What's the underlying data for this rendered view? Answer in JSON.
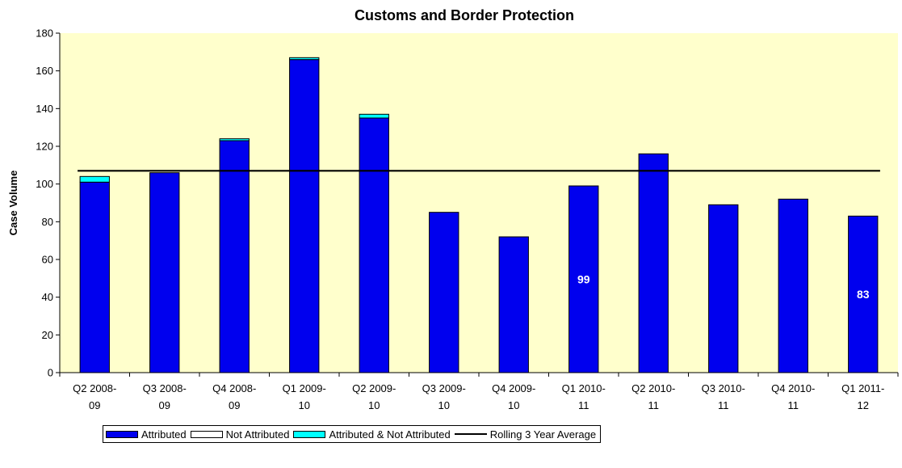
{
  "chart_data": {
    "type": "bar",
    "stacked": true,
    "title": "Customs and Border Protection",
    "xlabel": "",
    "ylabel": "Case Volume",
    "ylim": [
      0,
      180
    ],
    "yticks": [
      0,
      20,
      40,
      60,
      80,
      100,
      120,
      140,
      160,
      180
    ],
    "categories": [
      [
        "Q2 2008-",
        "09"
      ],
      [
        "Q3 2008-",
        "09"
      ],
      [
        "Q4 2008-",
        "09"
      ],
      [
        "Q1 2009-",
        "10"
      ],
      [
        "Q2 2009-",
        "10"
      ],
      [
        "Q3 2009-",
        "10"
      ],
      [
        "Q4 2009-",
        "10"
      ],
      [
        "Q1 2010-",
        "11"
      ],
      [
        "Q2 2010-",
        "11"
      ],
      [
        "Q3 2010-",
        "11"
      ],
      [
        "Q4 2010-",
        "11"
      ],
      [
        "Q1 2011-",
        "12"
      ]
    ],
    "series": [
      {
        "name": "Attributed",
        "kind": "bar",
        "color": "#0000ee",
        "values": [
          101,
          106,
          123,
          166,
          135,
          85,
          72,
          99,
          116,
          89,
          92,
          83
        ]
      },
      {
        "name": "Not Attributed",
        "kind": "bar",
        "color": "#ffffff",
        "values": [
          0,
          0,
          0,
          0,
          0,
          0,
          0,
          0,
          0,
          0,
          0,
          0
        ]
      },
      {
        "name": "Attributed & Not Attributed",
        "kind": "bar",
        "color": "#00ffff",
        "values": [
          3,
          0,
          1,
          1,
          2,
          0,
          0,
          0,
          0,
          0,
          0,
          0
        ]
      },
      {
        "name": "Rolling 3 Year Average",
        "kind": "line",
        "color": "#000000",
        "values": [
          107,
          107,
          107,
          107,
          107,
          107,
          107,
          107,
          107,
          107,
          107,
          107
        ]
      }
    ],
    "data_labels": [
      {
        "category_index": 7,
        "text": "99"
      },
      {
        "category_index": 11,
        "text": "83"
      }
    ],
    "plot_background": "#ffffcc",
    "grid": false,
    "legend_position": "bottom"
  }
}
